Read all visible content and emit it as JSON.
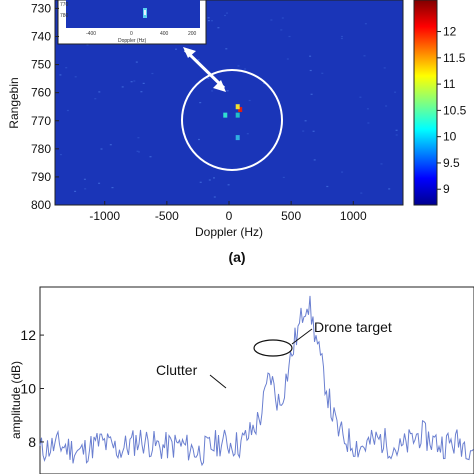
{
  "chart_data": [
    {
      "type": "heatmap",
      "xlabel": "Doppler (Hz)",
      "ylabel": "Rangebin",
      "xlim": [
        -1400,
        1400
      ],
      "ylim": [
        727,
        800
      ],
      "y_reversed": true,
      "x_ticks": [
        "-1000",
        "-500",
        "0",
        "500",
        "1000"
      ],
      "x_tick_values": [
        -1000,
        -500,
        0,
        500,
        1000
      ],
      "y_ticks": [
        "730",
        "740",
        "750",
        "760",
        "770",
        "780",
        "790",
        "800"
      ],
      "y_tick_values": [
        730,
        740,
        750,
        760,
        770,
        780,
        790,
        800
      ],
      "colorbar": {
        "min": 8.7,
        "max": 12.6,
        "ticks": [
          "12",
          "11.5",
          "11",
          "10.5",
          "10",
          "9.5",
          "9"
        ],
        "tick_values": [
          12,
          11.5,
          11,
          10.5,
          10,
          9.5,
          9
        ]
      },
      "background_color": "#1a35b8",
      "hotspots": [
        {
          "x": 90,
          "y": 766,
          "color": "#e02010"
        },
        {
          "x": 70,
          "y": 765,
          "color": "#f0e030"
        },
        {
          "x": 70,
          "y": 768,
          "color": "#20c0c8"
        },
        {
          "x": -30,
          "y": 768,
          "color": "#30e0d0"
        },
        {
          "x": 70,
          "y": 776,
          "color": "#30b0e0"
        }
      ],
      "inset": {
        "x_ticks": [
          "-400",
          "0",
          "400",
          "200"
        ],
        "y_ticks": [
          "770",
          "780"
        ],
        "xlabel": "Doppler (Hz)"
      },
      "annotation": "(a)"
    },
    {
      "type": "line",
      "ylabel": "amplitude (dB)",
      "y_ticks": [
        "12",
        "10",
        "8"
      ],
      "y_tick_values": [
        12,
        10,
        8
      ],
      "ylim": [
        6.8,
        13.8
      ],
      "line_color": "#6a7fd0",
      "series": [
        {
          "x": [
            0,
            20,
            40,
            60,
            80,
            100,
            120,
            140,
            160,
            180,
            200,
            210,
            220,
            225,
            230,
            235,
            240,
            245,
            250,
            255,
            260,
            265,
            268,
            272,
            276,
            280,
            285,
            290,
            295,
            300,
            310,
            320,
            340,
            360,
            380,
            400,
            420,
            440,
            460,
            474
          ],
          "values": [
            7.7,
            7.9,
            7.6,
            8.0,
            7.7,
            8.1,
            7.8,
            7.9,
            7.6,
            8.0,
            7.9,
            8.3,
            8.9,
            9.7,
            10.6,
            9.8,
            9.4,
            10.2,
            11.0,
            11.8,
            12.4,
            13.2,
            13.3,
            12.6,
            11.9,
            11.1,
            10.3,
            9.4,
            8.7,
            8.3,
            8.0,
            7.8,
            8.1,
            7.7,
            8.3,
            7.9,
            8.0,
            7.7,
            7.9,
            7.8
          ]
        }
      ],
      "annotations": [
        "Drone target",
        "Clutter"
      ]
    }
  ]
}
